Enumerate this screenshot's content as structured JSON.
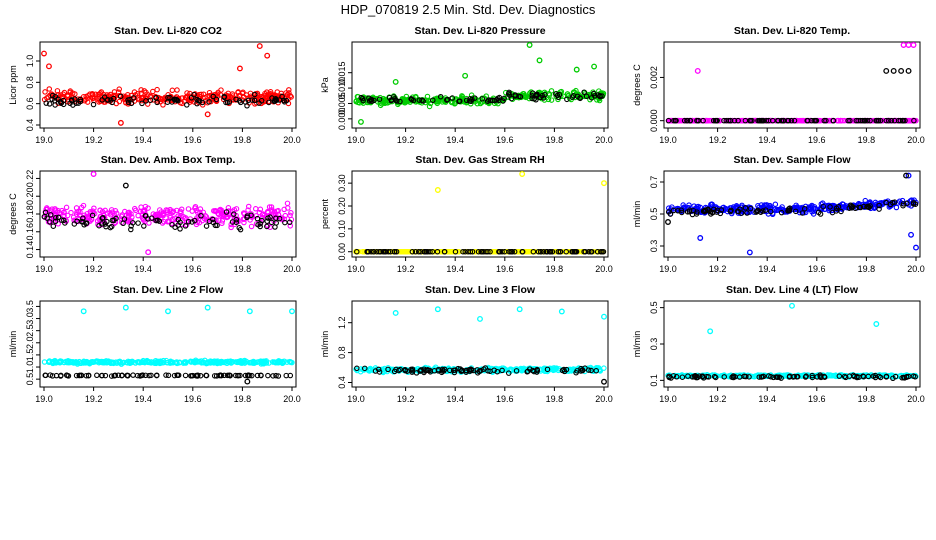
{
  "title": "HDP_070819  2.5 Min. Std. Dev. Diagnostics",
  "chart_data": [
    {
      "type": "scatter",
      "title": "Stan. Dev. Li-820 CO2",
      "ylabel": "Licor ppm",
      "xlabel": "",
      "xlim": [
        19.0,
        20.0
      ],
      "ylim": [
        0.4,
        1.15
      ],
      "xticks": [
        "19.0",
        "19.2",
        "19.4",
        "19.6",
        "19.8",
        "20.0"
      ],
      "yticks": [
        "0.4",
        "0.6",
        "0.8",
        "1.0"
      ],
      "grid": false,
      "series": [
        {
          "color": "#ff0000",
          "base": 0.66,
          "spread": 0.09,
          "outliers": [
            [
              19.0,
              1.07
            ],
            [
              19.02,
              0.95
            ],
            [
              19.31,
              0.42
            ],
            [
              19.79,
              0.93
            ],
            [
              19.87,
              1.14
            ],
            [
              19.9,
              1.05
            ],
            [
              19.66,
              0.5
            ]
          ]
        },
        {
          "color": "#000000",
          "base": 0.63,
          "spread": 0.07,
          "outliers": []
        }
      ]
    },
    {
      "type": "scatter",
      "title": "Stan. Dev. Li-820 Pressure",
      "ylabel": "kPa",
      "xlabel": "",
      "xlim": [
        19.0,
        20.0
      ],
      "ylim": [
        -0.002,
        0.024
      ],
      "xticks": [
        "19.0",
        "19.2",
        "19.4",
        "19.6",
        "19.8",
        "20.0"
      ],
      "yticks": [
        "0.000",
        "0.005",
        "0.010",
        "0.015"
      ],
      "grid": false,
      "series": [
        {
          "color": "#00cc00",
          "base": 0.006,
          "spread": 0.002,
          "outliers": [
            [
              19.7,
              0.024
            ],
            [
              19.44,
              0.014
            ],
            [
              19.74,
              0.019
            ],
            [
              19.89,
              0.016
            ],
            [
              19.96,
              0.017
            ],
            [
              19.02,
              -0.001
            ],
            [
              19.16,
              0.012
            ]
          ]
        },
        {
          "color": "#000000",
          "base": 0.006,
          "spread": 0.0015,
          "outliers": []
        }
      ]
    },
    {
      "type": "scatter",
      "title": "Stan. Dev. Li-820 Temp.",
      "ylabel": "degrees C",
      "xlabel": "",
      "xlim": [
        19.0,
        20.0
      ],
      "ylim": [
        -0.0002,
        0.0035
      ],
      "xticks": [
        "19.0",
        "19.2",
        "19.4",
        "19.6",
        "19.8",
        "20.0"
      ],
      "yticks": [
        "0.000",
        "0.002"
      ],
      "grid": false,
      "series": [
        {
          "color": "#ff00ff",
          "base": 0.0,
          "spread": 0.0,
          "outliers": [
            [
              19.12,
              0.0023
            ],
            [
              19.95,
              0.0035
            ],
            [
              19.97,
              0.0035
            ],
            [
              19.99,
              0.0035
            ],
            [
              19.99,
              0.0
            ]
          ]
        },
        {
          "color": "#000000",
          "base": 0.0,
          "spread": 0.0,
          "outliers": [
            [
              19.88,
              0.0023
            ],
            [
              19.91,
              0.0023
            ],
            [
              19.94,
              0.0023
            ],
            [
              19.97,
              0.0023
            ]
          ]
        }
      ]
    },
    {
      "type": "scatter",
      "title": "Stan. Dev. Amb. Box Temp.",
      "ylabel": "degrees C",
      "xlabel": "",
      "xlim": [
        19.0,
        20.0
      ],
      "ylim": [
        0.135,
        0.225
      ],
      "xticks": [
        "19.0",
        "19.2",
        "19.4",
        "19.6",
        "19.8",
        "20.0"
      ],
      "yticks": [
        "0.14",
        "0.16",
        "0.18",
        "0.20",
        "0.22"
      ],
      "grid": false,
      "series": [
        {
          "color": "#ff00ff",
          "base": 0.178,
          "spread": 0.016,
          "outliers": [
            [
              19.2,
              0.225
            ],
            [
              19.42,
              0.137
            ]
          ]
        },
        {
          "color": "#000000",
          "base": 0.172,
          "spread": 0.014,
          "outliers": [
            [
              19.33,
              0.212
            ]
          ]
        }
      ]
    },
    {
      "type": "scatter",
      "title": "Stan. Dev. Gas Stream RH",
      "ylabel": "percent",
      "xlabel": "",
      "xlim": [
        19.0,
        20.0
      ],
      "ylim": [
        -0.01,
        0.34
      ],
      "xticks": [
        "19.0",
        "19.2",
        "19.4",
        "19.6",
        "19.8",
        "20.0"
      ],
      "yticks": [
        "0.00",
        "0.10",
        "0.20",
        "0.30"
      ],
      "grid": false,
      "series": [
        {
          "color": "#ffff00",
          "base": 0.0,
          "spread": 0.0,
          "outliers": [
            [
              19.33,
              0.27
            ],
            [
              19.67,
              0.34
            ],
            [
              20.0,
              0.3
            ],
            [
              19.0,
              0.0
            ]
          ]
        },
        {
          "color": "#000000",
          "base": 0.0,
          "spread": 0.0,
          "outliers": []
        }
      ]
    },
    {
      "type": "scatter",
      "title": "Stan. Dev. Sample Flow",
      "ylabel": "ml/min",
      "xlabel": "",
      "xlim": [
        19.0,
        20.0
      ],
      "ylim": [
        0.25,
        0.75
      ],
      "xticks": [
        "19.0",
        "19.2",
        "19.4",
        "19.6",
        "19.8",
        "20.0"
      ],
      "yticks": [
        "0.3",
        "0.5",
        "0.7"
      ],
      "grid": false,
      "series": [
        {
          "color": "#0000ff",
          "base": 0.53,
          "spread": 0.04,
          "outliers": [
            [
              19.33,
              0.26
            ],
            [
              19.97,
              0.74
            ],
            [
              20.0,
              0.29
            ],
            [
              19.98,
              0.37
            ],
            [
              19.13,
              0.35
            ]
          ]
        },
        {
          "color": "#000000",
          "base": 0.52,
          "spread": 0.03,
          "outliers": [
            [
              19.0,
              0.45
            ],
            [
              19.96,
              0.74
            ]
          ]
        }
      ]
    },
    {
      "type": "scatter",
      "title": "Stan. Dev. Line 2 Flow",
      "ylabel": "ml/min",
      "xlabel": "",
      "xlim": [
        19.0,
        20.0
      ],
      "ylim": [
        0.3,
        3.6
      ],
      "xticks": [
        "19.0",
        "19.2",
        "19.4",
        "19.6",
        "19.8",
        "20.0"
      ],
      "yticks": [
        "0.5",
        "1.0",
        "1.5",
        "2.0",
        "2.5",
        "3.0",
        "3.5"
      ],
      "grid": false,
      "series": [
        {
          "color": "#00ffff",
          "base": 1.2,
          "spread": 0.09,
          "outliers": [
            [
              19.16,
              3.3
            ],
            [
              19.33,
              3.45
            ],
            [
              19.5,
              3.3
            ],
            [
              19.66,
              3.45
            ],
            [
              19.83,
              3.3
            ],
            [
              20.0,
              3.3
            ]
          ]
        },
        {
          "color": "#000000",
          "base": 0.65,
          "spread": 0.03,
          "outliers": [
            [
              19.82,
              0.4
            ]
          ]
        }
      ]
    },
    {
      "type": "scatter",
      "title": "Stan. Dev. Line 3 Flow",
      "ylabel": "ml/min",
      "xlabel": "",
      "xlim": [
        19.0,
        20.0
      ],
      "ylim": [
        0.38,
        1.45
      ],
      "xticks": [
        "19.0",
        "19.2",
        "19.4",
        "19.6",
        "19.8",
        "20.0"
      ],
      "yticks": [
        "0.4",
        "0.8",
        "1.2"
      ],
      "grid": false,
      "series": [
        {
          "color": "#00ffff",
          "base": 0.57,
          "spread": 0.04,
          "outliers": [
            [
              19.16,
              1.33
            ],
            [
              19.33,
              1.38
            ],
            [
              19.5,
              1.25
            ],
            [
              19.66,
              1.38
            ],
            [
              19.83,
              1.35
            ],
            [
              20.0,
              1.28
            ]
          ]
        },
        {
          "color": "#000000",
          "base": 0.56,
          "spread": 0.04,
          "outliers": [
            [
              20.0,
              0.41
            ]
          ]
        }
      ]
    },
    {
      "type": "scatter",
      "title": "Stan. Dev. Line 4 (LT) Flow",
      "ylabel": "ml/min",
      "xlabel": "",
      "xlim": [
        19.0,
        20.0
      ],
      "ylim": [
        0.08,
        0.52
      ],
      "xticks": [
        "19.0",
        "19.2",
        "19.4",
        "19.6",
        "19.8",
        "20.0"
      ],
      "yticks": [
        "0.1",
        "0.3",
        "0.5"
      ],
      "grid": false,
      "series": [
        {
          "color": "#00ffff",
          "base": 0.125,
          "spread": 0.008,
          "outliers": [
            [
              19.17,
              0.37
            ],
            [
              19.5,
              0.51
            ],
            [
              19.84,
              0.41
            ]
          ]
        },
        {
          "color": "#000000",
          "base": 0.12,
          "spread": 0.01,
          "outliers": []
        }
      ]
    }
  ]
}
